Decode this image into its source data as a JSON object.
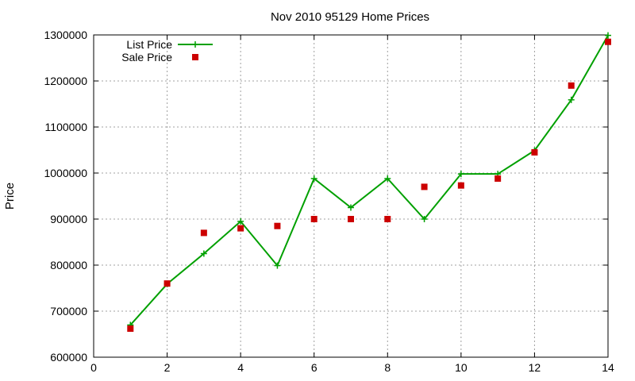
{
  "chart_data": {
    "type": "line",
    "title": "Nov 2010 95129 Home Prices",
    "xlabel": "",
    "ylabel": "Price",
    "xlim": [
      0,
      14
    ],
    "ylim": [
      600000,
      1300000
    ],
    "x_ticks": [
      0,
      2,
      4,
      6,
      8,
      10,
      12,
      14
    ],
    "y_ticks": [
      600000,
      700000,
      800000,
      900000,
      1000000,
      1100000,
      1200000,
      1300000
    ],
    "x_tick_labels": [
      "0",
      "2",
      "4",
      "6",
      "8",
      "10",
      "12",
      "14"
    ],
    "y_tick_labels": [
      "600000",
      "700000",
      "800000",
      "900000",
      "1000000",
      "1100000",
      "1200000",
      "1300000"
    ],
    "grid": true,
    "legend_position": "top-left",
    "series": [
      {
        "name": "List Price",
        "style": "line-plus",
        "color": "#00a000",
        "points": [
          [
            1,
            670000
          ],
          [
            2,
            759000
          ],
          [
            3,
            825000
          ],
          [
            4,
            895000
          ],
          [
            5,
            799000
          ],
          [
            6,
            988000
          ],
          [
            7,
            925000
          ],
          [
            8,
            988000
          ],
          [
            9,
            900000
          ],
          [
            10,
            998000
          ],
          [
            11,
            998000
          ],
          [
            12,
            1049000
          ],
          [
            13,
            1159000
          ],
          [
            14,
            1299000
          ]
        ]
      },
      {
        "name": "Sale Price",
        "style": "square",
        "color": "#cc0000",
        "points": [
          [
            1,
            662000
          ],
          [
            2,
            760000
          ],
          [
            3,
            870000
          ],
          [
            4,
            880000
          ],
          [
            5,
            885000
          ],
          [
            6,
            900000
          ],
          [
            7,
            900000
          ],
          [
            8,
            900000
          ],
          [
            9,
            970000
          ],
          [
            10,
            973000
          ],
          [
            11,
            988000
          ],
          [
            12,
            1045000
          ],
          [
            13,
            1190000
          ],
          [
            14,
            1285000
          ]
        ]
      }
    ]
  }
}
